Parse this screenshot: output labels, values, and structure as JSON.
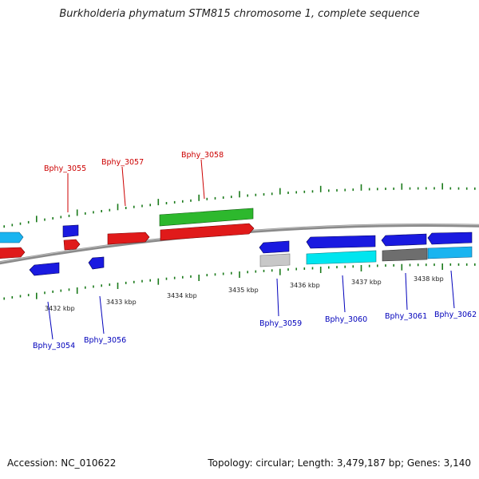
{
  "title": "Burkholderia phymatum STM815 chromosome 1, complete sequence",
  "footer": {
    "accession": "Accession: NC_010622",
    "summary": "Topology: circular; Length: 3,479,187 bp; Genes: 3,140"
  },
  "colors": {
    "forward_red": "#e01a1a",
    "forward_green": "#2db82d",
    "reverse_blue": "#1a1ae0",
    "cyan": "#00e5ef",
    "light_blue": "#19b4f0",
    "gray": "#6e6e6e",
    "light_gray": "#c8c8c8",
    "forward_label": "#cc0000",
    "reverse_label": "#0000bb",
    "tick": "#1a7a1a",
    "backbone": "#8a8a8a"
  },
  "axis": {
    "tick_labels": [
      "3432 kbp",
      "3433 kbp",
      "3434 kbp",
      "3435 kbp",
      "3436 kbp",
      "3437 kbp",
      "3438 kbp"
    ]
  },
  "gene_labels": {
    "forward": [
      "Bphy_3055",
      "Bphy_3057",
      "Bphy_3058"
    ],
    "reverse": [
      "Bphy_3054",
      "Bphy_3056",
      "Bphy_3059",
      "Bphy_3060",
      "Bphy_3061",
      "Bphy_3062"
    ]
  }
}
